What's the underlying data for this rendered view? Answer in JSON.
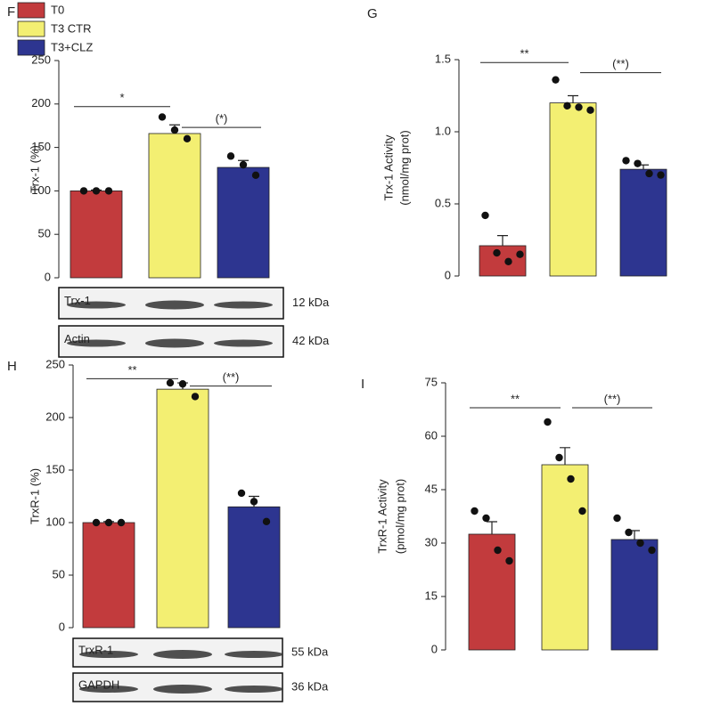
{
  "legend": {
    "names": [
      "T0",
      "T3 CTR",
      "T3+CLZ"
    ],
    "colors": [
      "#c23b3d",
      "#f3ef72",
      "#2d3590"
    ]
  },
  "chart_data": [
    {
      "type": "bar",
      "panel": "F",
      "ylabel": [
        "Trx-1 (%)"
      ],
      "ylim": [
        0,
        250
      ],
      "yticks": [
        0,
        50,
        100,
        150,
        200,
        250
      ],
      "values": [
        100,
        166,
        127
      ],
      "errors": [
        1,
        10,
        8
      ],
      "points": [
        [
          100,
          100,
          100
        ],
        [
          185,
          170,
          160
        ],
        [
          140,
          130,
          118
        ]
      ],
      "annotations": [
        {
          "text": "*",
          "y": 197
        },
        {
          "text": "(*)",
          "y": 173
        }
      ],
      "blots": [
        {
          "label": "Trx-1",
          "size": "12 kDa"
        },
        {
          "label": "Actin",
          "size": "42 kDa"
        }
      ]
    },
    {
      "type": "bar",
      "panel": "G",
      "ylabel": [
        "Trx-1 Activity",
        "(nmol/mg prot)"
      ],
      "ylim": [
        0,
        1.5
      ],
      "yticks": [
        0,
        0.5,
        {
          "value": 1,
          "label": "1.0"
        },
        1.5
      ],
      "values": [
        0.21,
        1.2,
        0.74
      ],
      "errors": [
        0.07,
        0.05,
        0.03
      ],
      "points": [
        [
          0.42,
          0.16,
          0.1,
          0.15
        ],
        [
          1.36,
          1.18,
          1.17,
          1.15
        ],
        [
          0.8,
          0.78,
          0.71,
          0.7
        ]
      ],
      "annotations": [
        {
          "text": "**",
          "y": 1.48
        },
        {
          "text": "(**)",
          "y": 1.41
        }
      ]
    },
    {
      "type": "bar",
      "panel": "H",
      "ylabel": [
        "TrxR-1 (%)"
      ],
      "ylim": [
        0,
        250
      ],
      "yticks": [
        0,
        50,
        100,
        150,
        200,
        250
      ],
      "values": [
        100,
        227,
        115
      ],
      "errors": [
        1,
        6,
        10
      ],
      "points": [
        [
          100,
          100,
          100
        ],
        [
          233,
          232,
          220
        ],
        [
          128,
          120,
          101
        ]
      ],
      "annotations": [
        {
          "text": "**",
          "y": 237
        },
        {
          "text": "(**)",
          "y": 230
        }
      ],
      "blots": [
        {
          "label": "TrxR-1",
          "size": "55 kDa"
        },
        {
          "label": "GAPDH",
          "size": "36 kDa"
        }
      ]
    },
    {
      "type": "bar",
      "panel": "I",
      "ylabel": [
        "TrxR-1 Activity",
        "(pmol/mg prot)"
      ],
      "ylim": [
        0,
        75
      ],
      "yticks": [
        0,
        15,
        30,
        45,
        60,
        75
      ],
      "values": [
        32.5,
        52,
        31
      ],
      "errors": [
        3.5,
        4.8,
        2.5
      ],
      "points": [
        [
          39,
          37,
          28,
          25
        ],
        [
          64,
          54,
          48,
          39
        ],
        [
          37,
          33,
          30,
          28
        ]
      ],
      "annotations": [
        {
          "text": "**",
          "y": 68
        },
        {
          "text": "(**)",
          "y": 68
        }
      ]
    }
  ]
}
